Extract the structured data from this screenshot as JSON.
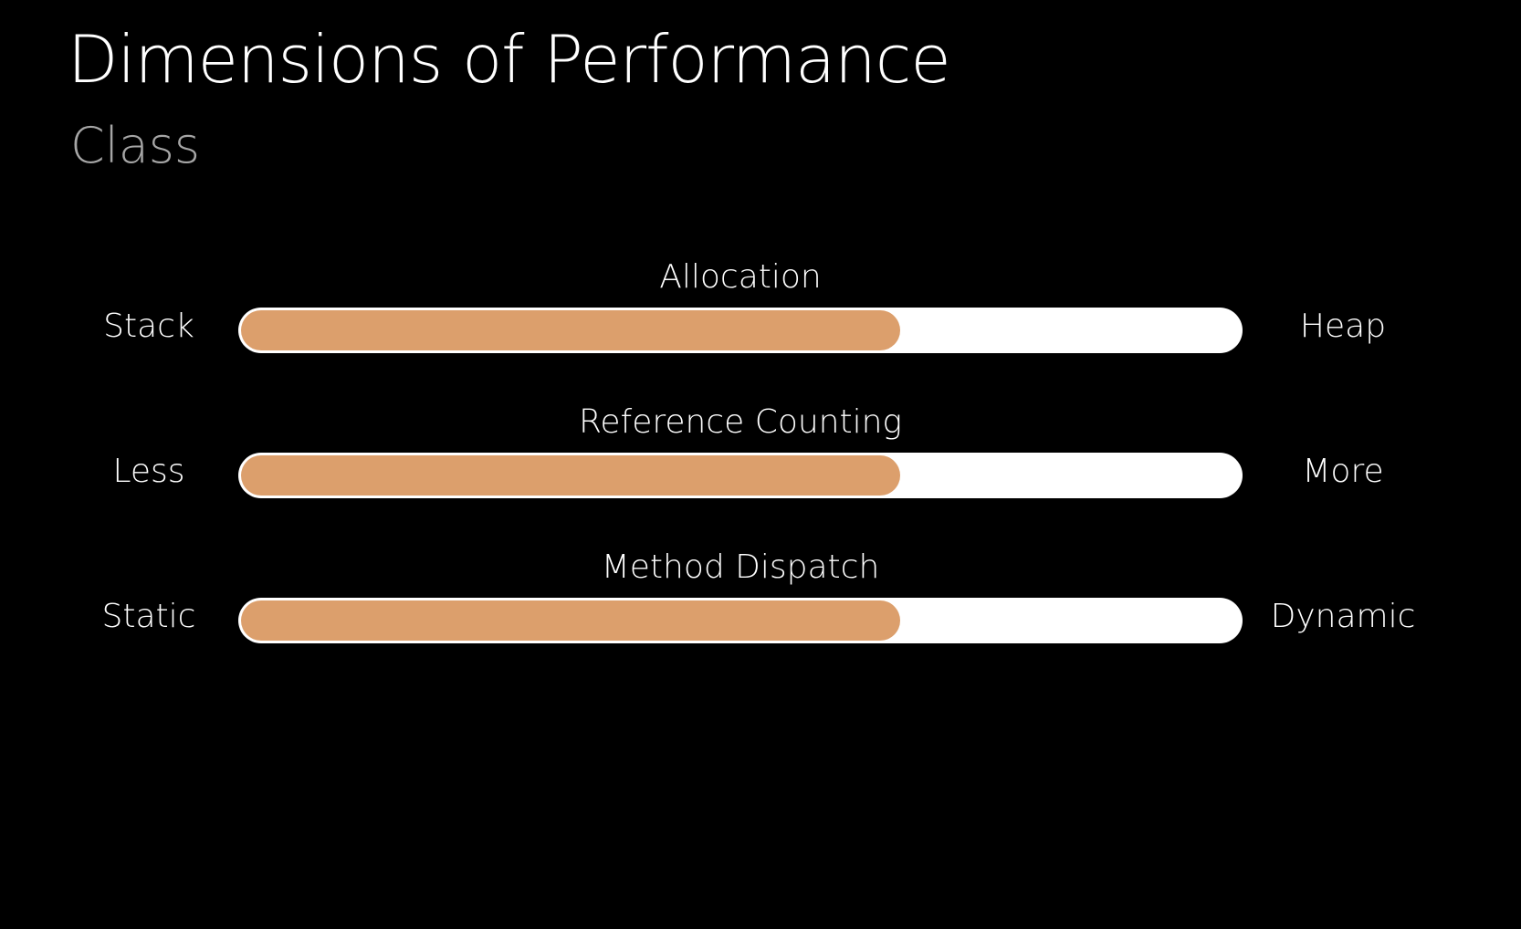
{
  "slide": {
    "title": "Dimensions of Performance",
    "subtitle": "Class"
  },
  "colors": {
    "background": "#000000",
    "track": "#ffffff",
    "fill": "#dc9f6c",
    "subtitle": "#a6a6a6"
  },
  "dimensions": [
    {
      "label": "Allocation",
      "left": "Stack",
      "right": "Heap",
      "level": 0.66
    },
    {
      "label": "Reference Counting",
      "left": "Less",
      "right": "More",
      "level": 0.66
    },
    {
      "label": "Method Dispatch",
      "left": "Static",
      "right": "Dynamic",
      "level": 0.66
    }
  ]
}
